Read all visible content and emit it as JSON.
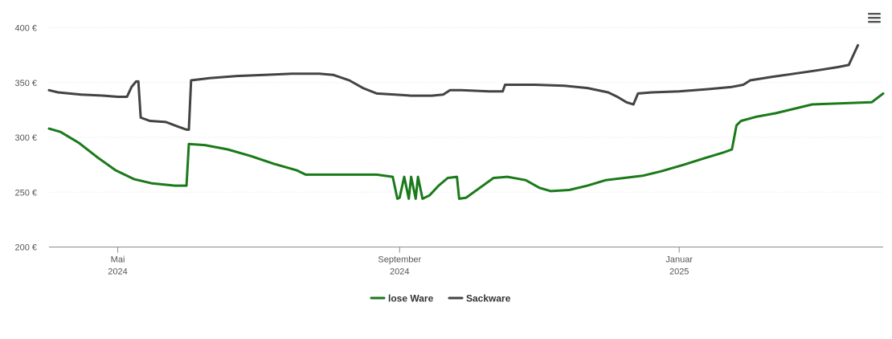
{
  "chart_data": {
    "type": "line",
    "title": "",
    "xlabel": "",
    "ylabel": "",
    "ylim": [
      200,
      400
    ],
    "xlim": [
      "2024-04-01",
      "2025-03-31"
    ],
    "y_ticks": [
      "200 €",
      "250 €",
      "300 €",
      "350 €",
      "400 €"
    ],
    "y_tick_values": [
      200,
      250,
      300,
      350,
      400
    ],
    "x_ticks": [
      {
        "date": "2024-05-01",
        "month": "Mai",
        "year": "2024"
      },
      {
        "date": "2024-09-01",
        "month": "September",
        "year": "2024"
      },
      {
        "date": "2025-01-01",
        "month": "Januar",
        "year": "2025"
      }
    ],
    "grid": true,
    "legend_position": "bottom",
    "series": [
      {
        "name": "lose Ware",
        "color": "#1a7a1a",
        "points": [
          [
            "2024-04-01",
            308
          ],
          [
            "2024-04-06",
            305
          ],
          [
            "2024-04-14",
            295
          ],
          [
            "2024-04-22",
            282
          ],
          [
            "2024-04-30",
            270
          ],
          [
            "2024-05-08",
            262
          ],
          [
            "2024-05-16",
            258
          ],
          [
            "2024-05-26",
            256
          ],
          [
            "2024-05-31",
            256
          ],
          [
            "2024-06-01",
            294
          ],
          [
            "2024-06-08",
            293
          ],
          [
            "2024-06-18",
            289
          ],
          [
            "2024-06-28",
            283
          ],
          [
            "2024-07-08",
            276
          ],
          [
            "2024-07-18",
            270
          ],
          [
            "2024-07-22",
            266
          ],
          [
            "2024-08-01",
            266
          ],
          [
            "2024-08-15",
            266
          ],
          [
            "2024-08-22",
            266
          ],
          [
            "2024-08-29",
            264
          ],
          [
            "2024-08-31",
            244
          ],
          [
            "2024-09-01",
            245
          ],
          [
            "2024-09-03",
            264
          ],
          [
            "2024-09-05",
            244
          ],
          [
            "2024-09-06",
            264
          ],
          [
            "2024-09-08",
            244
          ],
          [
            "2024-09-09",
            264
          ],
          [
            "2024-09-11",
            244
          ],
          [
            "2024-09-14",
            247
          ],
          [
            "2024-09-18",
            256
          ],
          [
            "2024-09-22",
            263
          ],
          [
            "2024-09-26",
            264
          ],
          [
            "2024-09-27",
            244
          ],
          [
            "2024-09-30",
            245
          ],
          [
            "2024-10-06",
            254
          ],
          [
            "2024-10-12",
            263
          ],
          [
            "2024-10-18",
            264
          ],
          [
            "2024-10-26",
            261
          ],
          [
            "2024-11-01",
            254
          ],
          [
            "2024-11-06",
            251
          ],
          [
            "2024-11-14",
            252
          ],
          [
            "2024-11-22",
            256
          ],
          [
            "2024-11-30",
            261
          ],
          [
            "2024-12-08",
            263
          ],
          [
            "2024-12-16",
            265
          ],
          [
            "2024-12-24",
            269
          ],
          [
            "2025-01-03",
            275
          ],
          [
            "2025-01-12",
            281
          ],
          [
            "2025-01-20",
            286
          ],
          [
            "2025-01-24",
            289
          ],
          [
            "2025-01-26",
            311
          ],
          [
            "2025-01-28",
            315
          ],
          [
            "2025-02-04",
            319
          ],
          [
            "2025-02-12",
            322
          ],
          [
            "2025-02-20",
            326
          ],
          [
            "2025-02-28",
            330
          ],
          [
            "2025-03-26",
            332
          ],
          [
            "2025-03-31",
            340
          ]
        ]
      },
      {
        "name": "Sackware",
        "color": "#434343",
        "points": [
          [
            "2024-04-01",
            343
          ],
          [
            "2024-04-05",
            341
          ],
          [
            "2024-04-15",
            339
          ],
          [
            "2024-04-25",
            338
          ],
          [
            "2024-05-01",
            337
          ],
          [
            "2024-05-05",
            337
          ],
          [
            "2024-05-07",
            346
          ],
          [
            "2024-05-09",
            351
          ],
          [
            "2024-05-10",
            351
          ],
          [
            "2024-05-11",
            318
          ],
          [
            "2024-05-15",
            315
          ],
          [
            "2024-05-22",
            314
          ],
          [
            "2024-05-27",
            310
          ],
          [
            "2024-05-31",
            307
          ],
          [
            "2024-06-01",
            307
          ],
          [
            "2024-06-02",
            352
          ],
          [
            "2024-06-10",
            354
          ],
          [
            "2024-06-22",
            356
          ],
          [
            "2024-07-04",
            357
          ],
          [
            "2024-07-16",
            358
          ],
          [
            "2024-07-28",
            358
          ],
          [
            "2024-08-03",
            357
          ],
          [
            "2024-08-10",
            352
          ],
          [
            "2024-08-16",
            345
          ],
          [
            "2024-08-22",
            340
          ],
          [
            "2024-08-30",
            339
          ],
          [
            "2024-09-06",
            338
          ],
          [
            "2024-09-15",
            338
          ],
          [
            "2024-09-20",
            339
          ],
          [
            "2024-09-23",
            343
          ],
          [
            "2024-09-28",
            343
          ],
          [
            "2024-10-10",
            342
          ],
          [
            "2024-10-16",
            342
          ],
          [
            "2024-10-17",
            348
          ],
          [
            "2024-10-30",
            348
          ],
          [
            "2024-11-12",
            347
          ],
          [
            "2024-11-22",
            345
          ],
          [
            "2024-12-01",
            341
          ],
          [
            "2024-12-05",
            337
          ],
          [
            "2024-12-09",
            332
          ],
          [
            "2024-12-12",
            330
          ],
          [
            "2024-12-14",
            340
          ],
          [
            "2024-12-20",
            341
          ],
          [
            "2025-01-01",
            342
          ],
          [
            "2025-01-14",
            344
          ],
          [
            "2025-01-24",
            346
          ],
          [
            "2025-01-29",
            348
          ],
          [
            "2025-02-01",
            352
          ],
          [
            "2025-02-10",
            355
          ],
          [
            "2025-02-20",
            358
          ],
          [
            "2025-03-02",
            361
          ],
          [
            "2025-03-11",
            364
          ],
          [
            "2025-03-16",
            366
          ],
          [
            "2025-03-20",
            384
          ]
        ]
      }
    ]
  },
  "toolbar": {
    "menu_icon": "hamburger-menu-icon"
  }
}
